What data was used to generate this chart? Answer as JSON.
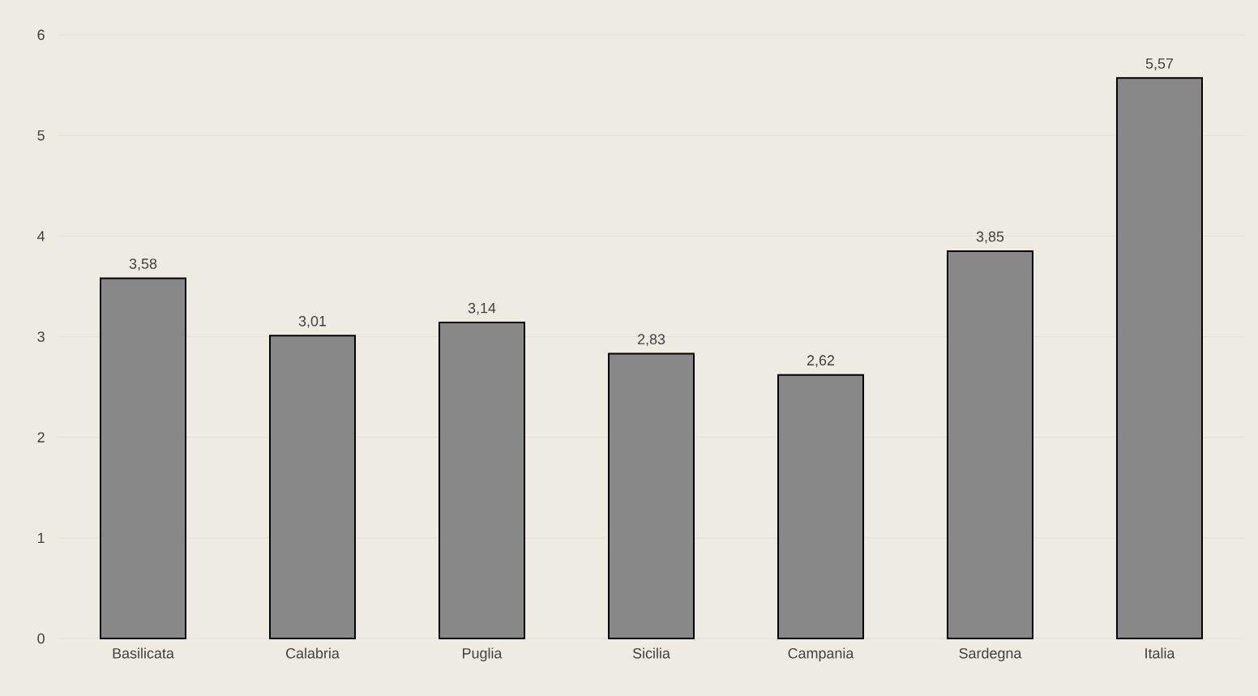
{
  "chart_data": {
    "type": "bar",
    "categories": [
      "Basilicata",
      "Calabria",
      "Puglia",
      "Sicilia",
      "Campania",
      "Sardegna",
      "Italia"
    ],
    "values": [
      3.58,
      3.01,
      3.14,
      2.83,
      2.62,
      3.85,
      5.57
    ],
    "value_labels": [
      "3,58",
      "3,01",
      "3,14",
      "2,83",
      "2,62",
      "3,85",
      "5,57"
    ],
    "color": "#888888",
    "ylim": [
      0,
      6
    ],
    "yticks": [
      0,
      1,
      2,
      3,
      4,
      5,
      6
    ],
    "grid": "y"
  }
}
